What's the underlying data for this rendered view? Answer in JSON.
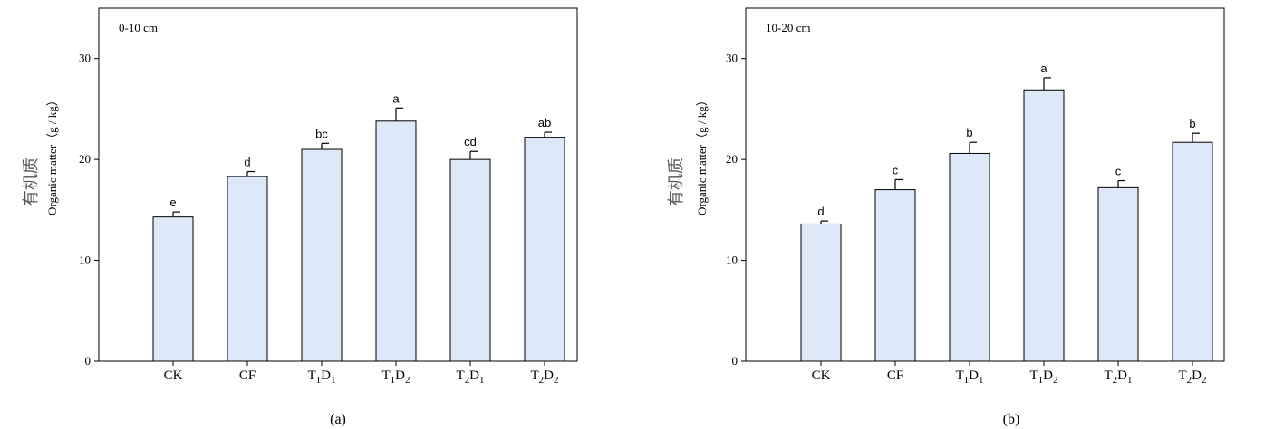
{
  "chart_data": [
    {
      "type": "bar",
      "panel_label": "0-10 cm",
      "caption": "(a)",
      "ylabel_zh": "有机质",
      "ylabel_en": "Organic matter（g / kg）",
      "ylim": [
        0,
        35
      ],
      "yticks": [
        "0",
        "10",
        "20",
        "30"
      ],
      "categories": [
        {
          "base": "CK",
          "sub1": "",
          "mid": "",
          "sub2": ""
        },
        {
          "base": "CF",
          "sub1": "",
          "mid": "",
          "sub2": ""
        },
        {
          "base": "T",
          "sub1": "1",
          "mid": "D",
          "sub2": "1"
        },
        {
          "base": "T",
          "sub1": "1",
          "mid": "D",
          "sub2": "2"
        },
        {
          "base": "T",
          "sub1": "2",
          "mid": "D",
          "sub2": "1"
        },
        {
          "base": "T",
          "sub1": "2",
          "mid": "D",
          "sub2": "2"
        }
      ],
      "values": [
        14.3,
        18.3,
        21.0,
        23.8,
        20.0,
        22.2
      ],
      "errors": [
        0.5,
        0.5,
        0.6,
        1.3,
        0.8,
        0.5
      ],
      "letters": [
        "e",
        "d",
        "bc",
        "a",
        "cd",
        "ab"
      ],
      "bar_color": "#dde8f8",
      "grid": false
    },
    {
      "type": "bar",
      "panel_label": "10-20 cm",
      "caption": "(b)",
      "ylabel_zh": "有机质",
      "ylabel_en": "Organic matter（g / kg）",
      "ylim": [
        0,
        35
      ],
      "yticks": [
        "0",
        "10",
        "20",
        "30"
      ],
      "categories": [
        {
          "base": "CK",
          "sub1": "",
          "mid": "",
          "sub2": ""
        },
        {
          "base": "CF",
          "sub1": "",
          "mid": "",
          "sub2": ""
        },
        {
          "base": "T",
          "sub1": "1",
          "mid": "D",
          "sub2": "1"
        },
        {
          "base": "T",
          "sub1": "1",
          "mid": "D",
          "sub2": "2"
        },
        {
          "base": "T",
          "sub1": "2",
          "mid": "D",
          "sub2": "1"
        },
        {
          "base": "T",
          "sub1": "2",
          "mid": "D",
          "sub2": "2"
        }
      ],
      "values": [
        13.6,
        17.0,
        20.6,
        26.9,
        17.2,
        21.7
      ],
      "errors": [
        0.3,
        1.0,
        1.1,
        1.2,
        0.7,
        0.9
      ],
      "letters": [
        "d",
        "c",
        "b",
        "a",
        "c",
        "b"
      ],
      "bar_color": "#dde8f8",
      "grid": false
    }
  ]
}
